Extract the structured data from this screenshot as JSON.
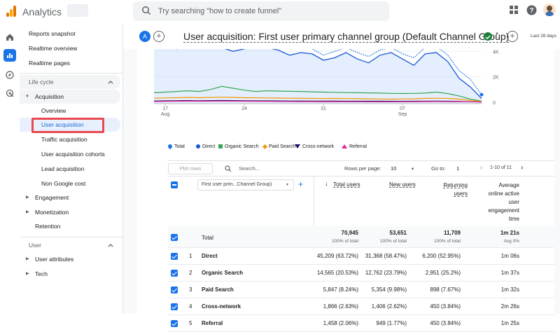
{
  "app": {
    "title": "Analytics",
    "search_placeholder": "Try searching \"how to create funnel\""
  },
  "nav": {
    "items": [
      "Reports snapshot",
      "Realtime overview",
      "Realtime pages"
    ],
    "lifecycle": "Life cycle",
    "acquisition": "Acquisition",
    "acq_items": [
      "Overview",
      "User acquisition",
      "Traffic acquisition",
      "User acquisition cohorts",
      "Lead acquisition",
      "Non Google cost"
    ],
    "engagement": "Engagement",
    "monetization": "Monetization",
    "retention": "Retention",
    "user_section": "User",
    "user_attributes": "User attributes",
    "tech": "Tech"
  },
  "header": {
    "avatar_letter": "A",
    "title": "User acquisition: First user primary channel group (Default Channel Group)",
    "date_range": "Last 28 days"
  },
  "chart_data": {
    "type": "area",
    "x_ticks": [
      "17 Aug",
      "24",
      "31",
      "07 Sep"
    ],
    "y_ticks": [
      "4K",
      "2K",
      "0"
    ],
    "series": [
      {
        "name": "Total",
        "color": "#1a73e8",
        "values": [
          4600,
          4700,
          4500,
          4750,
          4650,
          4700,
          4600,
          4350,
          4500,
          4700,
          4600,
          4400,
          4200,
          4400,
          4200,
          3700,
          4000,
          4300,
          3900,
          3600,
          4100,
          4300,
          3800,
          3500,
          4300,
          4400,
          3700,
          2500,
          1800,
          600
        ]
      },
      {
        "name": "Direct",
        "color": "#1558d6",
        "values": [
          4300,
          4400,
          4200,
          4500,
          4350,
          4400,
          4300,
          4000,
          4200,
          4400,
          4300,
          4100,
          3700,
          3900,
          3800,
          3300,
          3500,
          3900,
          3400,
          3100,
          3700,
          3900,
          3400,
          2900,
          3800,
          3900,
          3200,
          1900,
          1200,
          300
        ]
      },
      {
        "name": "Organic Search",
        "color": "#34a853",
        "values": [
          750,
          800,
          850,
          900,
          850,
          1000,
          1250,
          1100,
          950,
          850,
          900,
          880,
          860,
          850,
          820,
          800,
          780,
          760,
          750,
          740,
          720,
          700,
          690,
          700,
          720,
          800,
          680,
          500,
          250,
          80
        ]
      },
      {
        "name": "Paid Search",
        "color": "#f29900",
        "values": [
          320,
          340,
          360,
          380,
          360,
          380,
          400,
          380,
          360,
          350,
          340,
          330,
          320,
          310,
          300,
          290,
          300,
          290,
          280,
          270,
          260,
          250,
          260,
          270,
          300,
          320,
          300,
          250,
          150,
          50
        ]
      },
      {
        "name": "Cross-network",
        "color": "#1c0d5e",
        "values": [
          100,
          110,
          120,
          130,
          120,
          130,
          140,
          130,
          120,
          110,
          110,
          105,
          100,
          100,
          95,
          90,
          90,
          85,
          85,
          80,
          80,
          75,
          75,
          80,
          85,
          90,
          85,
          70,
          40,
          20
        ]
      },
      {
        "name": "Referral",
        "color": "#e52592",
        "values": [
          60,
          70,
          80,
          90,
          85,
          90,
          95,
          90,
          80,
          75,
          70,
          65,
          60,
          55,
          55,
          50,
          50,
          45,
          45,
          40,
          40,
          40,
          45,
          50,
          55,
          60,
          55,
          50,
          40,
          20
        ]
      }
    ]
  },
  "toolbar": {
    "plot_rows": "Plot rows",
    "search": "Search...",
    "rows_per_page_label": "Rows per page:",
    "rows_per_page": "10",
    "goto_label": "Go to:",
    "goto_value": "1",
    "pagination": "1-10 of 11"
  },
  "table": {
    "dimension": "First user prim...Channel Group)",
    "columns": [
      "Total users",
      "New users",
      "Returning users",
      "Average online active user engagement time"
    ],
    "total": {
      "label": "Total",
      "values": [
        "70,945",
        "53,651",
        "11,709",
        "1m 21s"
      ],
      "subs": [
        "100% of total",
        "100% of total",
        "100% of total",
        "Avg 0%"
      ]
    },
    "rows": [
      {
        "idx": "1",
        "name": "Direct",
        "values": [
          "45,209 (63.72%)",
          "31,368 (58.47%)",
          "6,200 (52.95%)",
          "1m 06s"
        ]
      },
      {
        "idx": "2",
        "name": "Organic Search",
        "values": [
          "14,565 (20.53%)",
          "12,762 (23.79%)",
          "2,951 (25.2%)",
          "1m 37s"
        ]
      },
      {
        "idx": "3",
        "name": "Paid Search",
        "values": [
          "5,847 (8.24%)",
          "5,354 (9.98%)",
          "898 (7.67%)",
          "1m 32s"
        ]
      },
      {
        "idx": "4",
        "name": "Cross-network",
        "values": [
          "1,866 (2.63%)",
          "1,406 (2.62%)",
          "450 (3.84%)",
          "2m 26s"
        ]
      },
      {
        "idx": "5",
        "name": "Referral",
        "values": [
          "1,458 (2.06%)",
          "949 (1.77%)",
          "450 (3.84%)",
          "1m 25s"
        ]
      }
    ]
  }
}
